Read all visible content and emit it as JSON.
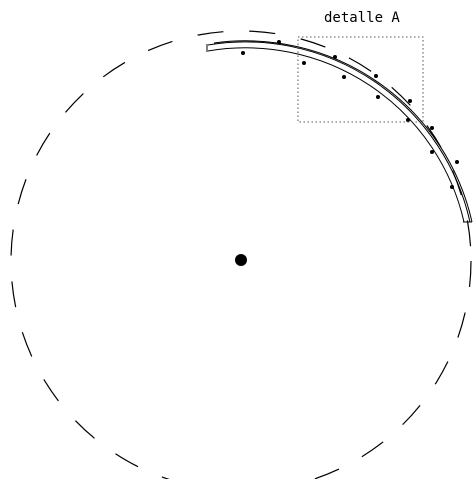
{
  "annotations": {
    "detail_label": "detalle A"
  },
  "colors": {
    "stroke": "#000000",
    "background": "#ffffff",
    "detail_box": "#555555"
  }
}
